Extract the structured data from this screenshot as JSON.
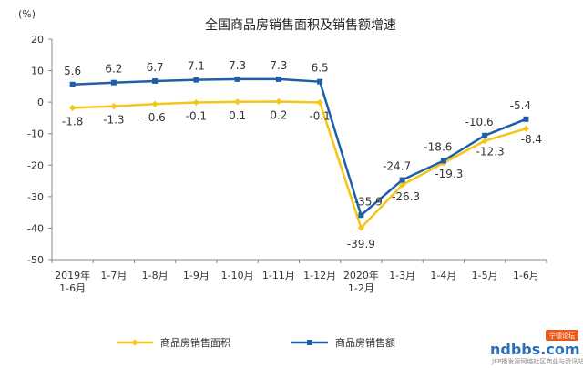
{
  "chart_data": {
    "type": "line",
    "title": "全国商品房销售面积及销售额增速",
    "unit_label": "(%)",
    "ylim": [
      -50,
      20
    ],
    "yticks": [
      20,
      10,
      0,
      -10,
      -20,
      -30,
      -40,
      -50
    ],
    "categories": [
      [
        "2019年",
        "1-6月"
      ],
      [
        "1-7月"
      ],
      [
        "1-8月"
      ],
      [
        "1-9月"
      ],
      [
        "1-10月"
      ],
      [
        "1-11月"
      ],
      [
        "1-12月"
      ],
      [
        "2020年",
        "1-2月"
      ],
      [
        "1-3月"
      ],
      [
        "1-4月"
      ],
      [
        "1-5月"
      ],
      [
        "1-6月"
      ]
    ],
    "series": [
      {
        "name": "商品房销售面积",
        "color": "#f5c518",
        "values": [
          -1.8,
          -1.3,
          -0.6,
          -0.1,
          0.1,
          0.2,
          -0.1,
          -39.9,
          -26.3,
          -19.3,
          -12.3,
          -8.4
        ],
        "labels": [
          "-1.8",
          "-1.3",
          "-0.6",
          "-0.1",
          "0.1",
          "0.2",
          "-0.1",
          "-39.9",
          "-26.3",
          "-19.3",
          "-12.3",
          "-8.4"
        ]
      },
      {
        "name": "商品房销售额",
        "color": "#1f5fa8",
        "values": [
          5.6,
          6.2,
          6.7,
          7.1,
          7.3,
          7.3,
          6.5,
          -35.9,
          -24.7,
          -18.6,
          -10.6,
          -5.4
        ],
        "labels": [
          "5.6",
          "6.2",
          "6.7",
          "7.1",
          "7.3",
          "7.3",
          "6.5",
          "-35.9",
          "-24.7",
          "-18.6",
          "-10.6",
          "-5.4"
        ]
      }
    ],
    "legend": "bottom"
  },
  "watermark": {
    "text": "ndbbs.com",
    "badge": "宁德论坛",
    "sub": "JFP播发源网络社区商业与资讯站"
  }
}
